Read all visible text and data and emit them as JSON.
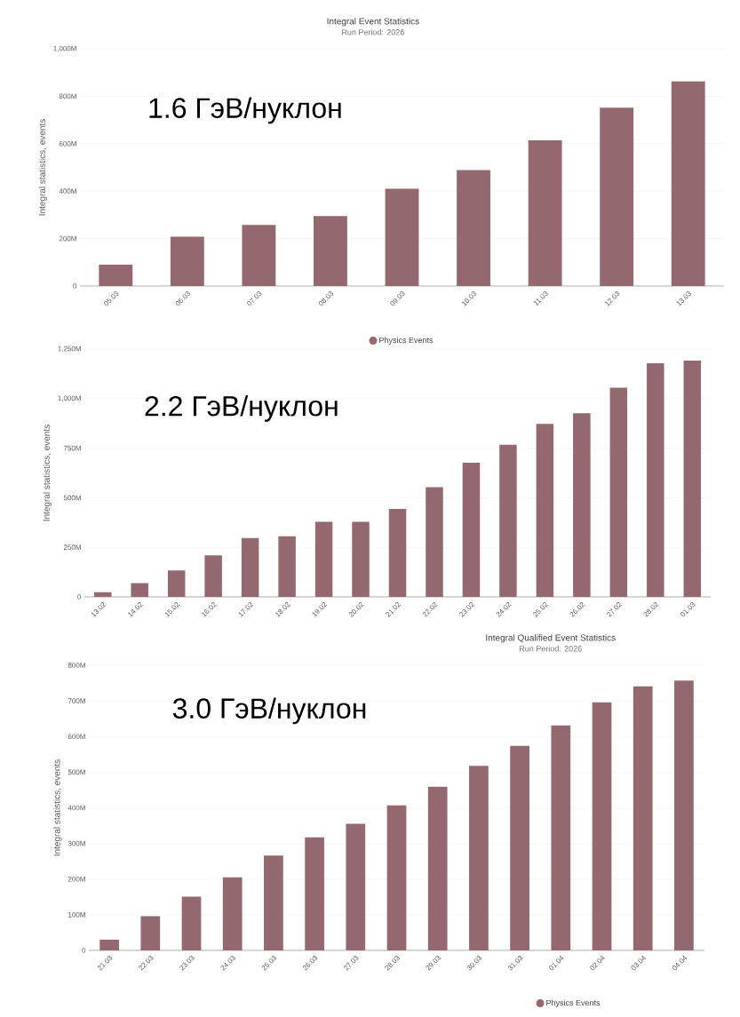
{
  "chart_data": [
    {
      "type": "bar",
      "title": "Integral Event Statistics",
      "subtitle": "Run Period: 2026",
      "ylabel": "Integral statistics, events",
      "categories": [
        "05.03",
        "06.03",
        "07.03",
        "08.03",
        "09.03",
        "10.03",
        "11.03",
        "12.03",
        "13.03"
      ],
      "series": [
        {
          "name": "Physics Events",
          "color": "#93686e",
          "values": [
            90,
            208,
            257,
            295,
            410,
            489,
            614,
            752,
            863
          ]
        }
      ],
      "ylim": [
        0,
        1000
      ],
      "yticks": [
        0,
        {
          "value": 200,
          "label": "200M"
        },
        {
          "value": 400,
          "label": "400M"
        },
        {
          "value": 600,
          "label": "600M"
        },
        {
          "value": 800,
          "label": "800M"
        },
        {
          "value": 1000,
          "label": "1,000M"
        }
      ],
      "grid": "y",
      "legend": "bottom",
      "annotations": [
        "1.6 ГэВ/нуклон"
      ]
    },
    {
      "type": "bar",
      "ylabel": "Integral statistics, events",
      "categories": [
        "13.02",
        "14.02",
        "15.02",
        "16.02",
        "17.02",
        "18.02",
        "19.02",
        "20.02",
        "21.02",
        "22.02",
        "23.02",
        "24.02",
        "25.02",
        "26.02",
        "27.02",
        "28.02",
        "01.03"
      ],
      "series": [
        {
          "color": "#93686e",
          "values": [
            24,
            69,
            133,
            209,
            297,
            306,
            378,
            378,
            444,
            553,
            677,
            767,
            872,
            926,
            1055,
            1178,
            1192
          ]
        }
      ],
      "ylim": [
        0,
        1250
      ],
      "yticks": [
        0,
        {
          "value": 250,
          "label": "250M"
        },
        {
          "value": 500,
          "label": "500M"
        },
        {
          "value": 750,
          "label": "750M"
        },
        {
          "value": 1000,
          "label": "1,000M"
        },
        {
          "value": 1250,
          "label": "1,250M"
        }
      ],
      "grid": "y",
      "annotations": [
        "2.2 ГэВ/нуклон"
      ]
    },
    {
      "type": "bar",
      "title": "Integral Qualified Event Statistics",
      "subtitle": "Run Period: 2026",
      "ylabel": "Integral statistics, events",
      "categories": [
        "21.03",
        "22.03",
        "23.03",
        "24.03",
        "25.03",
        "26.03",
        "27.03",
        "28.03",
        "29.03",
        "30.03",
        "31.03",
        "01.04",
        "02.04",
        "03.04",
        "04.04"
      ],
      "series": [
        {
          "name": "Physics Events",
          "color": "#93686e",
          "values": [
            30,
            96,
            151,
            205,
            266,
            317,
            355,
            407,
            459,
            518,
            574,
            631,
            696,
            741,
            757
          ]
        }
      ],
      "ylim": [
        0,
        800
      ],
      "yticks": [
        0,
        {
          "value": 100,
          "label": "100M"
        },
        {
          "value": 200,
          "label": "200M"
        },
        {
          "value": 300,
          "label": "300M"
        },
        {
          "value": 400,
          "label": "400M"
        },
        {
          "value": 500,
          "label": "500M"
        },
        {
          "value": 600,
          "label": "600M"
        },
        {
          "value": 700,
          "label": "700M"
        },
        {
          "value": 800,
          "label": "800M"
        }
      ],
      "grid": "y",
      "legend": "bottom right",
      "annotations": [
        "3.0 ГэВ/нуклон"
      ]
    }
  ]
}
